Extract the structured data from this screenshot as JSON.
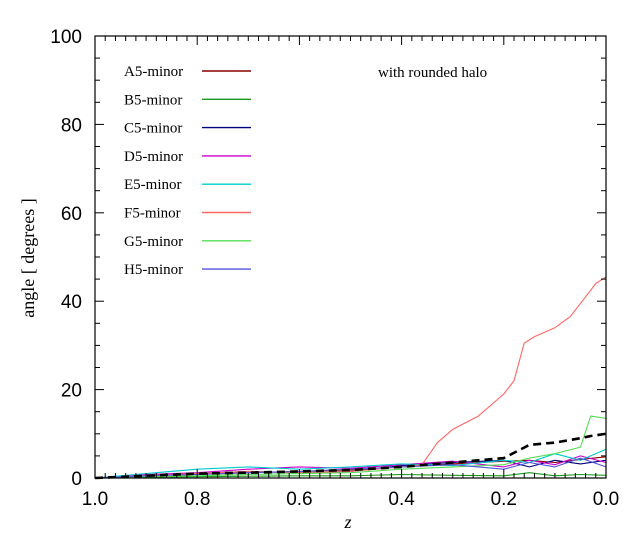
{
  "chart_data": {
    "type": "line",
    "xlabel": "z",
    "ylabel": "angle [ degrees ]",
    "annotation": "with rounded halo",
    "xlim": [
      1.0,
      0.0
    ],
    "ylim": [
      0,
      100
    ],
    "x_reversed": true,
    "grid": false,
    "legend_position": "top-left",
    "x_ticks": [
      {
        "value": 1.0,
        "label": "1.0"
      },
      {
        "value": 0.8,
        "label": "0.8"
      },
      {
        "value": 0.6,
        "label": "0.6"
      },
      {
        "value": 0.4,
        "label": "0.4"
      },
      {
        "value": 0.2,
        "label": "0.2"
      },
      {
        "value": 0.0,
        "label": "0.0"
      }
    ],
    "y_ticks": [
      {
        "value": 0,
        "label": "0"
      },
      {
        "value": 20,
        "label": "20"
      },
      {
        "value": 40,
        "label": "40"
      },
      {
        "value": 60,
        "label": "60"
      },
      {
        "value": 80,
        "label": "80"
      },
      {
        "value": 100,
        "label": "100"
      }
    ],
    "series": [
      {
        "name": "A5-minor",
        "color": "#8b0000",
        "dash": false,
        "x": [
          1.0,
          0.9,
          0.8,
          0.7,
          0.6,
          0.5,
          0.4,
          0.3,
          0.2,
          0.15,
          0.1,
          0.05,
          0.0
        ],
        "y": [
          0.0,
          0.5,
          0.8,
          1.2,
          1.5,
          1.8,
          2.5,
          3.2,
          3.8,
          4.0,
          3.5,
          4.2,
          4.8
        ]
      },
      {
        "name": "B5-minor",
        "color": "#1a9a1a",
        "dash": false,
        "x": [
          1.0,
          0.9,
          0.8,
          0.7,
          0.6,
          0.5,
          0.4,
          0.3,
          0.2,
          0.15,
          0.1,
          0.05,
          0.0
        ],
        "y": [
          0.0,
          0.2,
          0.3,
          0.4,
          0.5,
          0.5,
          0.8,
          0.6,
          0.5,
          1.2,
          0.5,
          0.8,
          0.6
        ]
      },
      {
        "name": "C5-minor",
        "color": "#000080",
        "dash": false,
        "x": [
          1.0,
          0.9,
          0.8,
          0.7,
          0.6,
          0.5,
          0.4,
          0.3,
          0.2,
          0.15,
          0.1,
          0.05,
          0.0
        ],
        "y": [
          0.0,
          0.5,
          1.0,
          1.5,
          1.2,
          1.5,
          2.8,
          3.5,
          4.0,
          2.5,
          4.0,
          3.2,
          4.0
        ]
      },
      {
        "name": "D5-minor",
        "color": "#cc00cc",
        "dash": false,
        "x": [
          1.0,
          0.9,
          0.8,
          0.7,
          0.6,
          0.5,
          0.4,
          0.3,
          0.2,
          0.15,
          0.1,
          0.05,
          0.0
        ],
        "y": [
          0.0,
          0.8,
          1.2,
          2.0,
          2.5,
          2.2,
          3.0,
          3.8,
          2.5,
          4.0,
          3.0,
          5.0,
          3.5
        ]
      },
      {
        "name": "E5-minor",
        "color": "#00cccc",
        "dash": false,
        "x": [
          1.0,
          0.9,
          0.8,
          0.7,
          0.6,
          0.5,
          0.4,
          0.3,
          0.2,
          0.15,
          0.1,
          0.05,
          0.0
        ],
        "y": [
          0.0,
          1.0,
          2.0,
          2.5,
          2.0,
          2.5,
          3.2,
          2.8,
          4.0,
          3.5,
          5.5,
          4.0,
          6.5
        ]
      },
      {
        "name": "F5-minor",
        "color": "#ff6666",
        "dash": false,
        "x": [
          1.0,
          0.9,
          0.8,
          0.7,
          0.6,
          0.5,
          0.4,
          0.36,
          0.33,
          0.3,
          0.25,
          0.2,
          0.18,
          0.16,
          0.14,
          0.1,
          0.07,
          0.04,
          0.02,
          0.0
        ],
        "y": [
          0.0,
          0.5,
          1.0,
          1.5,
          1.2,
          1.5,
          2.5,
          3.0,
          8.0,
          11.0,
          14.0,
          19.0,
          22.0,
          30.5,
          32.0,
          34.0,
          36.5,
          41.0,
          44.0,
          45.5
        ]
      },
      {
        "name": "G5-minor",
        "color": "#55dd55",
        "dash": false,
        "x": [
          1.0,
          0.9,
          0.8,
          0.7,
          0.6,
          0.5,
          0.4,
          0.3,
          0.2,
          0.15,
          0.1,
          0.05,
          0.03,
          0.0
        ],
        "y": [
          0.0,
          0.3,
          0.5,
          0.8,
          1.0,
          1.2,
          2.0,
          2.5,
          3.0,
          4.5,
          5.5,
          7.0,
          14.0,
          13.5
        ]
      },
      {
        "name": "H5-minor",
        "color": "#5555dd",
        "dash": false,
        "x": [
          1.0,
          0.9,
          0.8,
          0.7,
          0.6,
          0.5,
          0.4,
          0.3,
          0.2,
          0.15,
          0.1,
          0.05,
          0.0
        ],
        "y": [
          0.0,
          0.5,
          0.8,
          1.2,
          1.5,
          2.0,
          2.5,
          3.0,
          2.0,
          3.5,
          2.5,
          4.5,
          2.5
        ]
      },
      {
        "color": "#000000",
        "dash": true,
        "x": [
          1.0,
          0.9,
          0.8,
          0.7,
          0.6,
          0.5,
          0.4,
          0.3,
          0.25,
          0.2,
          0.15,
          0.1,
          0.05,
          0.03,
          0.0
        ],
        "y": [
          0.0,
          0.5,
          1.0,
          1.2,
          1.5,
          1.8,
          2.5,
          3.5,
          4.0,
          4.5,
          7.5,
          8.0,
          9.0,
          9.5,
          10.0
        ]
      }
    ]
  }
}
